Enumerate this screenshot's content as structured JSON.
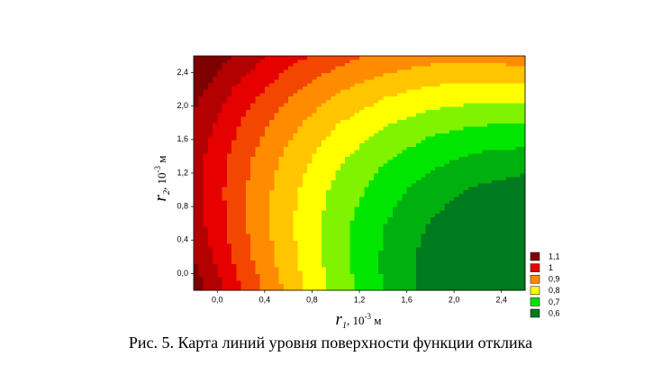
{
  "chart_data": {
    "type": "contour",
    "x": [
      -0.2,
      0.2,
      0.6,
      1.0,
      1.4,
      1.8,
      2.2,
      2.6
    ],
    "y": [
      -0.2,
      0.2,
      0.6,
      1.0,
      1.4,
      1.8,
      2.2,
      2.6
    ],
    "z": [
      [
        1.133,
        1.002,
        0.886,
        0.784,
        0.698,
        0.627,
        0.571,
        0.53
      ],
      [
        1.099,
        0.975,
        0.867,
        0.773,
        0.694,
        0.63,
        0.582,
        0.548
      ],
      [
        1.078,
        0.962,
        0.86,
        0.774,
        0.703,
        0.647,
        0.606,
        0.579
      ],
      [
        1.069,
        0.961,
        0.867,
        0.788,
        0.724,
        0.676,
        0.642,
        0.624
      ],
      [
        1.074,
        0.972,
        0.886,
        0.815,
        0.759,
        0.718,
        0.692,
        0.68
      ],
      [
        1.091,
        0.997,
        0.918,
        0.854,
        0.806,
        0.772,
        0.754,
        0.75
      ],
      [
        1.12,
        1.034,
        0.963,
        0.907,
        0.866,
        0.84,
        0.829,
        0.833
      ],
      [
        1.163,
        1.084,
        1.021,
        0.972,
        0.938,
        0.92,
        0.916,
        0.928
      ]
    ],
    "xlim": [
      -0.2,
      2.6
    ],
    "ylim": [
      -0.2,
      2.6
    ],
    "xticks": [
      {
        "value": 0,
        "label": "0,0"
      },
      {
        "value": 0.4,
        "label": "0,4"
      },
      {
        "value": 0.8,
        "label": "0,8"
      },
      {
        "value": 1.2,
        "label": "1,2"
      },
      {
        "value": 1.6,
        "label": "1,6"
      },
      {
        "value": 2.0,
        "label": "2,0"
      },
      {
        "value": 2.4,
        "label": "2,4"
      }
    ],
    "yticks": [
      {
        "value": 0,
        "label": "0,0"
      },
      {
        "value": 0.4,
        "label": "0,4"
      },
      {
        "value": 0.8,
        "label": "0,8"
      },
      {
        "value": 1.2,
        "label": "1,2"
      },
      {
        "value": 1.6,
        "label": "1,6"
      },
      {
        "value": 2.0,
        "label": "2,0"
      },
      {
        "value": 2.4,
        "label": "2,4"
      }
    ],
    "xlabel": {
      "symbol": "r",
      "index": "1",
      "text": ", 10",
      "power": "-3",
      "unit": " м"
    },
    "ylabel": {
      "symbol": "r",
      "index": "2",
      "text": ", 10",
      "power": "-3",
      "unit": " м"
    },
    "legend": {
      "position": "lower right",
      "levels": [
        {
          "value": 1.1,
          "label": "1,1",
          "color": "#7f0000"
        },
        {
          "value": 1.0,
          "label": "1",
          "color": "#e60000"
        },
        {
          "value": 0.9,
          "label": "0,9",
          "color": "#ff8c00"
        },
        {
          "value": 0.8,
          "label": "0,8",
          "color": "#ffff00"
        },
        {
          "value": 0.7,
          "label": "0,7",
          "color": "#00e600"
        },
        {
          "value": 0.6,
          "label": "0,6",
          "color": "#007a1e"
        }
      ]
    }
  },
  "caption": "Рис. 5. Карта линий уровня поверхности функции отклика"
}
